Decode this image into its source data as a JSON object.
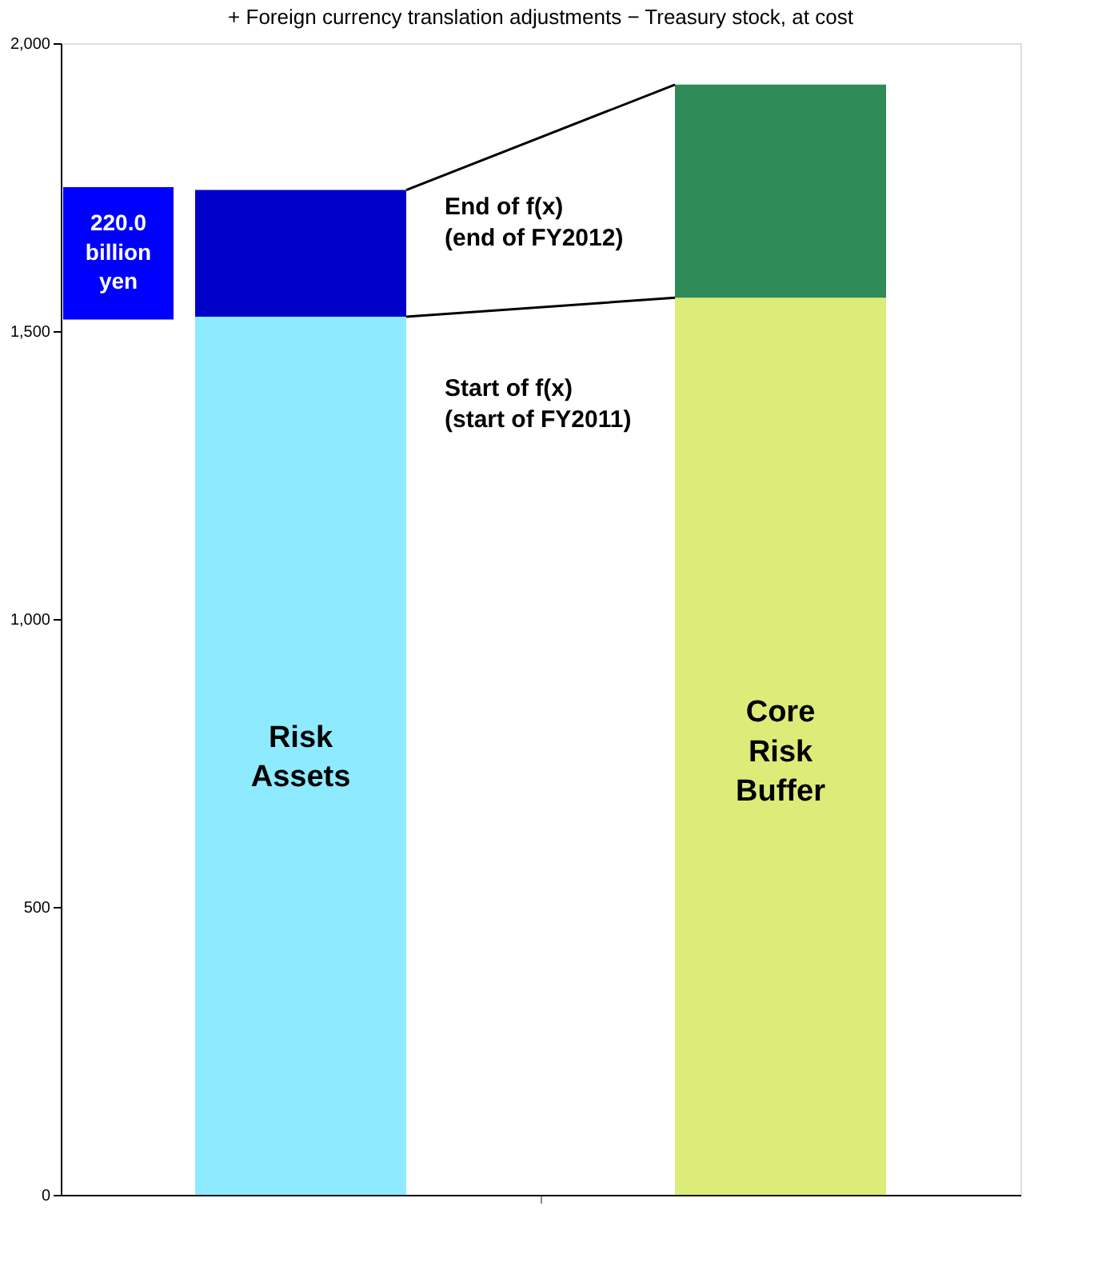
{
  "chart_data": {
    "type": "bar",
    "title": "+ Foreign currency translation adjustments − Treasury stock, at cost",
    "categories": [
      null,
      null
    ],
    "stacked": true,
    "series": [
      {
        "colors": [
          "#8eeaff",
          "#dcec78"
        ],
        "values": [
          1525,
          1558
        ]
      },
      {
        "colors": [
          "#0000c8",
          "#2e8b57"
        ],
        "values": [
          220,
          370
        ]
      }
    ],
    "ylim": [
      0,
      2000
    ],
    "yticks": [
      {
        "value": 0,
        "label": "0"
      },
      {
        "value": 500,
        "label": "500"
      },
      {
        "value": 1000,
        "label": "1,000"
      },
      {
        "value": 1500,
        "label": "1,500"
      },
      {
        "value": 2000,
        "label": "2,000"
      }
    ],
    "tick_labels": "y",
    "grid": false,
    "annotations": [
      "Risk\nAssets",
      "Core\nRisk\nBuffer",
      "220.0\nbillion\nyen",
      "End of f(x)\n(end of FY2012)",
      "Start of  f(x)\n(start of FY2011)"
    ]
  }
}
